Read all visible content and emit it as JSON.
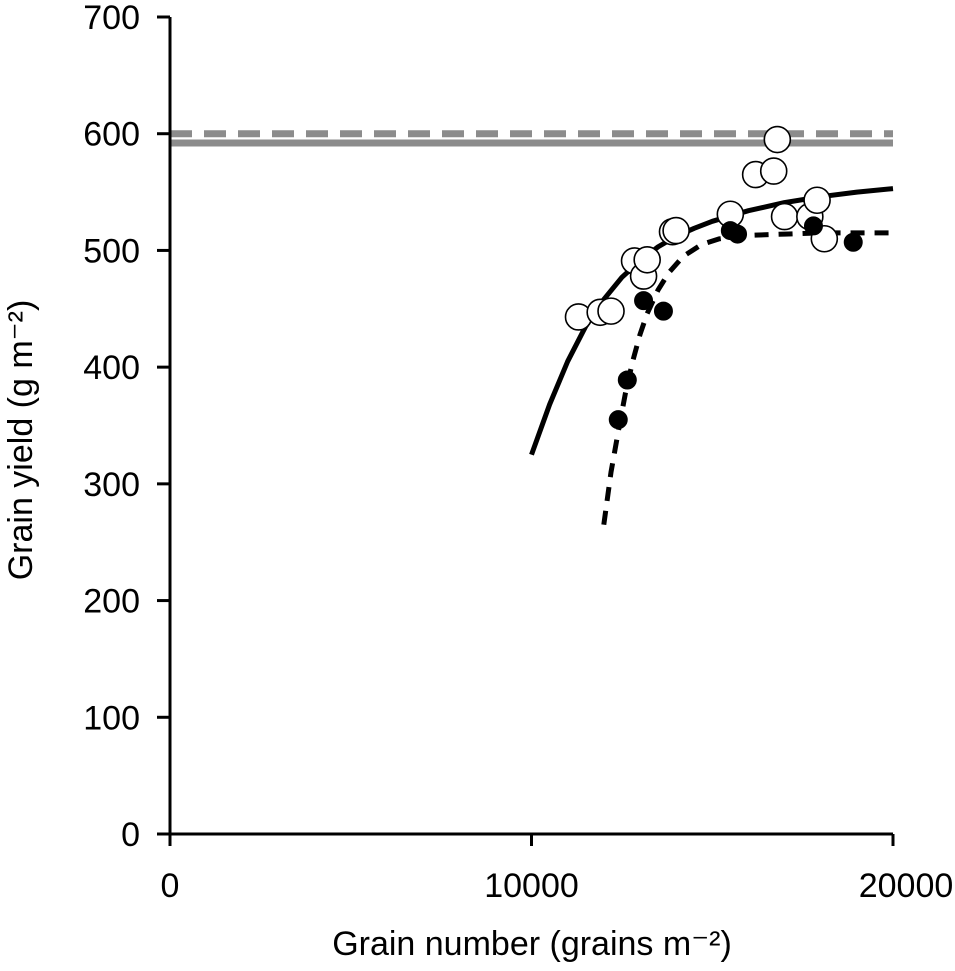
{
  "chart_data": {
    "type": "scatter",
    "xlabel": "Grain number  (grains m⁻²)",
    "ylabel": "Grain yield (g m⁻²)",
    "xlim": [
      0,
      20000
    ],
    "ylim": [
      0,
      700
    ],
    "x_ticks": [
      0,
      10000,
      20000
    ],
    "y_ticks": [
      0,
      100,
      200,
      300,
      400,
      500,
      600,
      700
    ],
    "x_tick_labels": [
      "0",
      "10000",
      "20000"
    ],
    "y_tick_labels": [
      "0",
      "100",
      "200",
      "300",
      "400",
      "500",
      "600",
      "700"
    ],
    "grid": false,
    "legend": null,
    "colors": {
      "axis": "#000000",
      "fit_line": "#000000",
      "ceiling_line": "#8c8c8c",
      "open_marker_fill": "#ffffff",
      "filled_marker_fill": "#000000"
    },
    "reference_lines": [
      {
        "y": 600,
        "style": "dashed",
        "color": "#8c8c8c"
      },
      {
        "y": 592,
        "style": "solid",
        "color": "#8c8c8c"
      }
    ],
    "series": [
      {
        "marker": "open-circle",
        "points": [
          {
            "x": 11300,
            "y": 443
          },
          {
            "x": 11900,
            "y": 447
          },
          {
            "x": 12200,
            "y": 448
          },
          {
            "x": 12850,
            "y": 491
          },
          {
            "x": 13100,
            "y": 478
          },
          {
            "x": 13200,
            "y": 492
          },
          {
            "x": 13900,
            "y": 516
          },
          {
            "x": 14000,
            "y": 517
          },
          {
            "x": 15500,
            "y": 531
          },
          {
            "x": 16200,
            "y": 565
          },
          {
            "x": 16700,
            "y": 568
          },
          {
            "x": 16800,
            "y": 595
          },
          {
            "x": 17000,
            "y": 529
          },
          {
            "x": 17700,
            "y": 529
          },
          {
            "x": 17900,
            "y": 543
          },
          {
            "x": 18100,
            "y": 510
          }
        ]
      },
      {
        "marker": "filled-circle",
        "points": [
          {
            "x": 12400,
            "y": 355
          },
          {
            "x": 12650,
            "y": 389
          },
          {
            "x": 13100,
            "y": 457
          },
          {
            "x": 13650,
            "y": 448
          },
          {
            "x": 15500,
            "y": 517
          },
          {
            "x": 15700,
            "y": 514
          },
          {
            "x": 17800,
            "y": 521
          },
          {
            "x": 18900,
            "y": 507
          }
        ]
      }
    ],
    "fits": [
      {
        "style": "solid",
        "x": [
          10000,
          10500,
          11000,
          11500,
          12000,
          12500,
          13000,
          13500,
          14000,
          14500,
          15000,
          16000,
          17000,
          18000,
          19000,
          20000
        ],
        "y": [
          325,
          368,
          405,
          435,
          458,
          477,
          491,
          503,
          512,
          519,
          525,
          534,
          541,
          546,
          550,
          553
        ]
      },
      {
        "style": "dashed",
        "x": [
          12000,
          12200,
          12400,
          12600,
          12800,
          13000,
          13200,
          13500,
          13800,
          14200,
          14700,
          15200,
          16000,
          17000,
          18000,
          19000,
          20000
        ],
        "y": [
          265,
          310,
          345,
          378,
          405,
          428,
          446,
          466,
          481,
          495,
          505,
          510,
          513,
          514,
          515,
          515,
          515
        ]
      }
    ]
  }
}
